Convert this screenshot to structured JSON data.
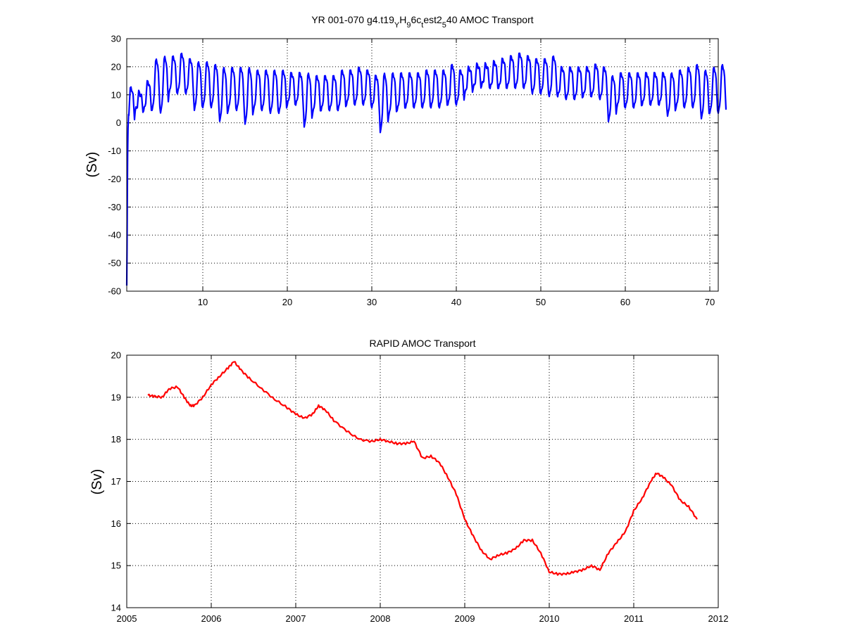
{
  "chart_data": [
    {
      "type": "line",
      "title_main": "YR 001-070 g4.t19",
      "title_parts": [
        {
          "text": "YR 001-070 g4.t19",
          "sub": false
        },
        {
          "text": "Y",
          "sub": true
        },
        {
          "text": "H",
          "sub": false
        },
        {
          "text": "9",
          "sub": true
        },
        {
          "text": "6c",
          "sub": false
        },
        {
          "text": "t",
          "sub": true
        },
        {
          "text": "est2",
          "sub": false
        },
        {
          "text": "5",
          "sub": true
        },
        {
          "text": "40 AMOC Transport",
          "sub": false
        }
      ],
      "ylabel": "(Sv)",
      "xlim": [
        1,
        71
      ],
      "ylim": [
        -60,
        30
      ],
      "xticks": [
        10,
        20,
        30,
        40,
        50,
        60,
        70
      ],
      "yticks": [
        -60,
        -50,
        -40,
        -30,
        -20,
        -10,
        0,
        10,
        20,
        30
      ],
      "grid": true,
      "color": "#0000ff",
      "series": [
        {
          "start_x": 1,
          "step": 0.0833,
          "annual_max": [
            13,
            11,
            15,
            23,
            24,
            24,
            25,
            23,
            22,
            22,
            21,
            20,
            20,
            20,
            20,
            19,
            19,
            19,
            19,
            18,
            18,
            18,
            17,
            17,
            17,
            19,
            19,
            20,
            19,
            17,
            18,
            18,
            18,
            18,
            18,
            19,
            19,
            19,
            21,
            19,
            20,
            21,
            21,
            22,
            23,
            24,
            25,
            24,
            23,
            23,
            24,
            20,
            20,
            20,
            20,
            21,
            20,
            17,
            18,
            18,
            18,
            18,
            18,
            18,
            18,
            19,
            20,
            21,
            19,
            20,
            21
          ],
          "annual_min": [
            -2,
            4,
            4,
            4,
            3,
            10,
            10,
            10,
            4,
            5,
            5,
            0,
            4,
            4,
            -1,
            4,
            4,
            3,
            3,
            6,
            6,
            -2,
            3,
            4,
            4,
            4,
            6,
            6,
            6,
            5,
            -4,
            2,
            4,
            5,
            5,
            5,
            5,
            5,
            6,
            6,
            10,
            12,
            13,
            12,
            12,
            12,
            12,
            12,
            10,
            10,
            9,
            9,
            8,
            8,
            9,
            9,
            8,
            0,
            5,
            5,
            5,
            6,
            6,
            6,
            2,
            5,
            5,
            5,
            1,
            3,
            3
          ]
        }
      ]
    },
    {
      "type": "line",
      "title": "RAPID AMOC Transport",
      "ylabel": "(Sv)",
      "xlim": [
        2005,
        2012
      ],
      "ylim": [
        14,
        20
      ],
      "xticks": [
        2005,
        2006,
        2007,
        2008,
        2009,
        2010,
        2011,
        2012
      ],
      "yticks": [
        14,
        15,
        16,
        17,
        18,
        19,
        20
      ],
      "grid": true,
      "color": "#ff0000",
      "series": [
        {
          "x": [
            2005.25,
            2005.33,
            2005.42,
            2005.5,
            2005.6,
            2005.68,
            2005.75,
            2005.8,
            2005.9,
            2006.0,
            2006.1,
            2006.2,
            2006.27,
            2006.35,
            2006.45,
            2006.6,
            2006.75,
            2006.9,
            2007.0,
            2007.1,
            2007.2,
            2007.27,
            2007.35,
            2007.45,
            2007.6,
            2007.75,
            2007.9,
            2008.0,
            2008.1,
            2008.2,
            2008.3,
            2008.4,
            2008.5,
            2008.6,
            2008.7,
            2008.8,
            2008.9,
            2009.0,
            2009.1,
            2009.2,
            2009.3,
            2009.4,
            2009.5,
            2009.6,
            2009.7,
            2009.8,
            2009.9,
            2010.0,
            2010.1,
            2010.2,
            2010.3,
            2010.4,
            2010.5,
            2010.6,
            2010.7,
            2010.8,
            2010.9,
            2011.0,
            2011.1,
            2011.2,
            2011.27,
            2011.35,
            2011.45,
            2011.55,
            2011.65,
            2011.75
          ],
          "y": [
            19.05,
            19.02,
            19.0,
            19.2,
            19.25,
            19.0,
            18.8,
            18.8,
            19.0,
            19.3,
            19.5,
            19.7,
            19.85,
            19.65,
            19.45,
            19.2,
            18.95,
            18.75,
            18.6,
            18.5,
            18.6,
            18.8,
            18.7,
            18.45,
            18.2,
            18.0,
            17.95,
            18.0,
            17.95,
            17.9,
            17.9,
            17.95,
            17.55,
            17.6,
            17.45,
            17.1,
            16.7,
            16.1,
            15.7,
            15.35,
            15.15,
            15.25,
            15.3,
            15.4,
            15.6,
            15.6,
            15.3,
            14.85,
            14.8,
            14.8,
            14.85,
            14.9,
            15.0,
            14.9,
            15.3,
            15.55,
            15.8,
            16.3,
            16.6,
            17.0,
            17.2,
            17.1,
            16.9,
            16.55,
            16.4,
            16.1
          ]
        }
      ]
    }
  ]
}
